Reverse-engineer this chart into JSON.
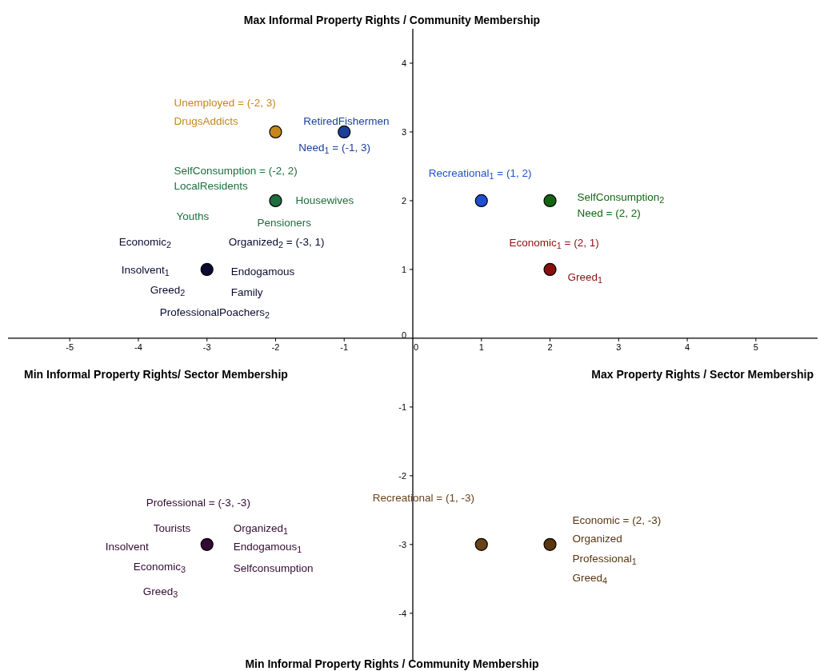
{
  "chart_data": {
    "type": "scatter",
    "title": "Max Informal Property Rights / Community Membership",
    "xlabel": "Max Property Rights / Sector Membership",
    "marker": "circle",
    "xlim": [
      -5.9,
      5.9
    ],
    "ylim": [
      -4.7,
      4.5
    ],
    "xticks": [
      -5,
      -4,
      -3,
      -2,
      -1,
      0,
      1,
      2,
      3,
      4,
      5
    ],
    "yticks": [
      -4,
      -3,
      -2,
      -1,
      0,
      1,
      2,
      3,
      4
    ],
    "series": [
      {
        "color": "#c8861a",
        "x": [
          -2
        ],
        "values": [
          3
        ]
      },
      {
        "color": "#1a3f9a",
        "x": [
          -1
        ],
        "values": [
          3
        ]
      },
      {
        "color": "#1e6e3e",
        "x": [
          -2
        ],
        "values": [
          2
        ]
      },
      {
        "color": "#0a0a33",
        "x": [
          -3
        ],
        "values": [
          1
        ]
      },
      {
        "color": "#1f4fd0",
        "x": [
          1
        ],
        "values": [
          2
        ]
      },
      {
        "color": "#116611",
        "x": [
          2
        ],
        "values": [
          2
        ]
      },
      {
        "color": "#8a0f0f",
        "x": [
          2
        ],
        "values": [
          1
        ]
      },
      {
        "color": "#330a33",
        "x": [
          -3
        ],
        "values": [
          -3
        ]
      },
      {
        "color": "#6a4218",
        "x": [
          1
        ],
        "values": [
          -3
        ]
      },
      {
        "color": "#5a3610",
        "x": [
          2
        ],
        "values": [
          -3
        ]
      }
    ],
    "annotations": [
      "Min Informal Property Rights/ Sector Membership",
      "Min Informal Property Rights / Community Membership",
      "Unemployed = (-2, 3)",
      "DrugsAddicts",
      "RetiredFishermen",
      "Need$_{1}$ = (-1, 3)",
      "SelfConsumption = (-2, 2)",
      "LocalResidents",
      "Housewives",
      "Youths",
      "Pensioners",
      "Economic$_{2}$",
      "Organized$_{2}$ = (-3, 1)",
      "Insolvent$_{1}$",
      "Endogamous",
      "Greed$_{2}$",
      "Family",
      "ProfessionalPoachers$_{2}$",
      "Recreational$_{1}$ = (1, 2)",
      "SelfConsumption$_{2}$",
      "Need = (2, 2)",
      "Economic$_{1}$ = (2, 1)",
      "Greed$_{1}$",
      "Professional = (-3, -3)",
      "Tourists",
      "Organized$_{1}$",
      "Insolvent",
      "Endogamous$_{1}$",
      "Economic$_{3}$",
      "Selfconsumption",
      "Greed$_{3}$",
      "Recreational = (1, -3)",
      "Economic = (2, -3)",
      "Organized",
      "Professional$_{1}$",
      "Greed$_{4}$"
    ]
  }
}
